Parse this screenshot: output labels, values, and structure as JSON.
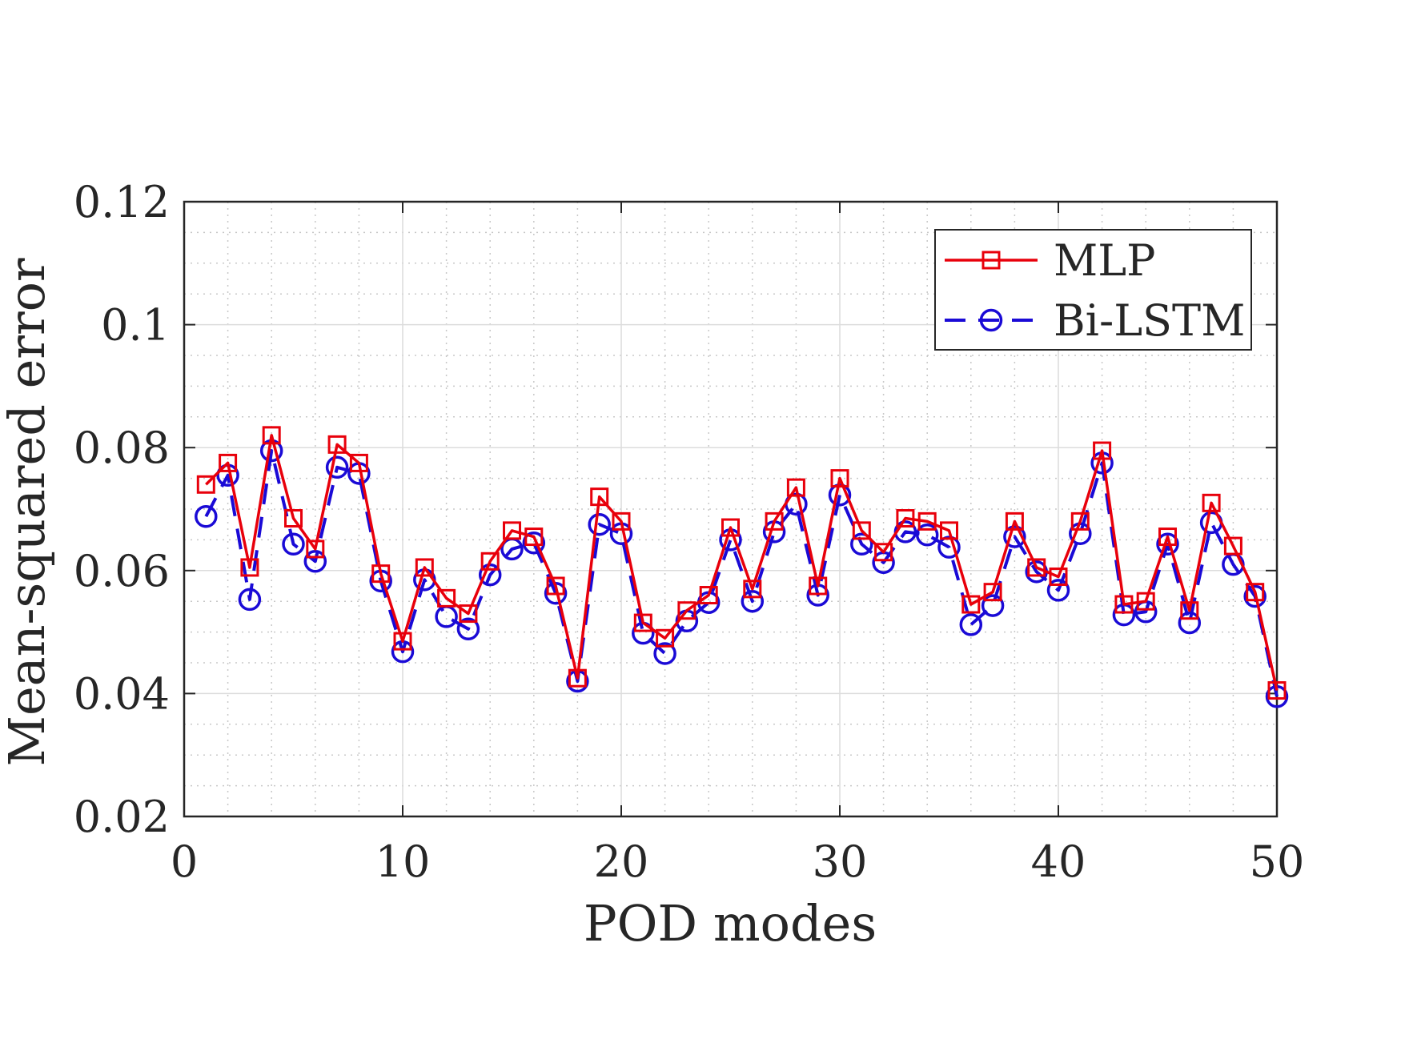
{
  "chart_data": {
    "type": "line",
    "title": "",
    "xlabel": "POD modes",
    "ylabel": "Mean-squared error",
    "xlim": [
      0,
      50
    ],
    "ylim": [
      0.02,
      0.12
    ],
    "xticks": [
      0,
      10,
      20,
      30,
      40,
      50
    ],
    "xtick_labels": [
      "0",
      "10",
      "20",
      "30",
      "40",
      "50"
    ],
    "yticks": [
      0.02,
      0.04,
      0.06,
      0.08,
      0.1,
      0.12
    ],
    "ytick_labels": [
      "0.02",
      "0.04",
      "0.06",
      "0.08",
      "0.1",
      "0.12"
    ],
    "grid": true,
    "minor_grid": true,
    "legend_position": "top-right",
    "x": [
      1,
      2,
      3,
      4,
      5,
      6,
      7,
      8,
      9,
      10,
      11,
      12,
      13,
      14,
      15,
      16,
      17,
      18,
      19,
      20,
      21,
      22,
      23,
      24,
      25,
      26,
      27,
      28,
      29,
      30,
      31,
      32,
      33,
      34,
      35,
      36,
      37,
      38,
      39,
      40,
      41,
      42,
      43,
      44,
      45,
      46,
      47,
      48,
      49,
      50
    ],
    "series": [
      {
        "name": "MLP",
        "color": "#e8000b",
        "marker": "square",
        "linestyle": "solid",
        "values": [
          0.074,
          0.0775,
          0.0605,
          0.082,
          0.0685,
          0.0635,
          0.0805,
          0.0775,
          0.0595,
          0.0485,
          0.0605,
          0.0555,
          0.053,
          0.0615,
          0.0665,
          0.0655,
          0.0575,
          0.0425,
          0.072,
          0.068,
          0.0515,
          0.049,
          0.0535,
          0.056,
          0.067,
          0.057,
          0.068,
          0.0735,
          0.0575,
          0.075,
          0.0665,
          0.063,
          0.0685,
          0.068,
          0.0665,
          0.0545,
          0.0565,
          0.068,
          0.0605,
          0.059,
          0.068,
          0.0795,
          0.0545,
          0.055,
          0.0655,
          0.0535,
          0.071,
          0.064,
          0.0565,
          0.0405
        ]
      },
      {
        "name": "Bi-LSTM",
        "color": "#1a0ad6",
        "marker": "circle",
        "linestyle": "dashed",
        "values": [
          0.0688,
          0.0755,
          0.0553,
          0.0795,
          0.0643,
          0.0615,
          0.0768,
          0.0758,
          0.0583,
          0.0468,
          0.0585,
          0.0525,
          0.0505,
          0.0593,
          0.0635,
          0.0645,
          0.0563,
          0.042,
          0.0675,
          0.066,
          0.0498,
          0.0465,
          0.0518,
          0.0548,
          0.065,
          0.055,
          0.0663,
          0.0708,
          0.056,
          0.0723,
          0.0643,
          0.0613,
          0.0663,
          0.0658,
          0.0638,
          0.0512,
          0.0543,
          0.0655,
          0.0598,
          0.0568,
          0.066,
          0.0775,
          0.0528,
          0.0533,
          0.0643,
          0.0515,
          0.0678,
          0.061,
          0.0558,
          0.0395
        ]
      }
    ]
  }
}
